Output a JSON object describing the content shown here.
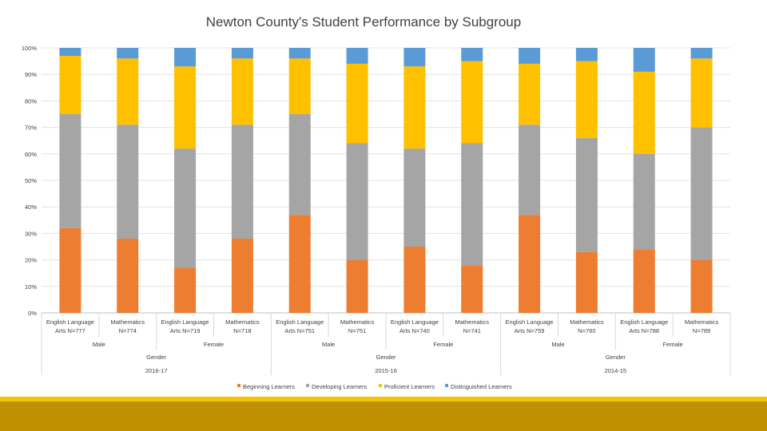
{
  "chart_data": {
    "type": "bar",
    "stacked": "percent",
    "title": "Newton County's Student Performance by Subgroup",
    "ylim": [
      0,
      100
    ],
    "y_ticks": [
      "0%",
      "10%",
      "20%",
      "30%",
      "40%",
      "50%",
      "60%",
      "70%",
      "80%",
      "90%",
      "100%"
    ],
    "grid": true,
    "legend_position": "bottom",
    "categories": [
      {
        "label1": "English Language",
        "label2": "Arts N=777"
      },
      {
        "label1": "Mathematics",
        "label2": "N=774"
      },
      {
        "label1": "English Language",
        "label2": "Arts N=719"
      },
      {
        "label1": "Mathematics",
        "label2": "N=718"
      },
      {
        "label1": "English Language",
        "label2": "Arts N=751"
      },
      {
        "label1": "Mathematics",
        "label2": "N=751"
      },
      {
        "label1": "English Language",
        "label2": "Arts N=740"
      },
      {
        "label1": "Mathematics",
        "label2": "N=741"
      },
      {
        "label1": "English Language",
        "label2": "Arts N=759"
      },
      {
        "label1": "Mathematics",
        "label2": "N=760"
      },
      {
        "label1": "English Language",
        "label2": "Arts N=788"
      },
      {
        "label1": "Mathematics",
        "label2": "N=789"
      }
    ],
    "group_level_1": [
      "Male",
      "Female",
      "Male",
      "Female",
      "Male",
      "Female"
    ],
    "group_level_2": [
      "Gender",
      "Gender",
      "Gender"
    ],
    "group_level_3": [
      "2016-17",
      "2015-16",
      "2014-15"
    ],
    "series": [
      {
        "name": "Beginning Learners",
        "color": "#ed7d31",
        "values": [
          32,
          28,
          17,
          28,
          37,
          20,
          25,
          18,
          37,
          23,
          24,
          20
        ]
      },
      {
        "name": "Developing Learners",
        "color": "#a5a5a5",
        "values": [
          43,
          43,
          45,
          43,
          38,
          44,
          37,
          46,
          34,
          43,
          36,
          50
        ]
      },
      {
        "name": "Proficient Learners",
        "color": "#ffc000",
        "values": [
          22,
          25,
          31,
          25,
          21,
          30,
          31,
          31,
          23,
          29,
          31,
          26
        ]
      },
      {
        "name": "Distinguished Learners",
        "color": "#5b9bd5",
        "values": [
          3,
          4,
          7,
          4,
          4,
          6,
          7,
          5,
          6,
          5,
          9,
          4
        ]
      }
    ]
  }
}
